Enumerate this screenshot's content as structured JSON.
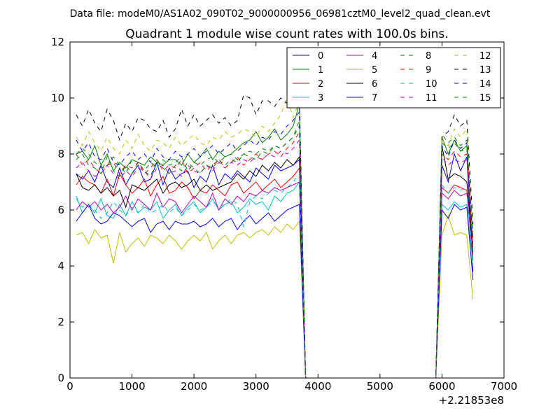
{
  "figure": {
    "suptitle": "Data file: modeM0/AS1A02_090T02_9000000956_06981cztM0_level2_quad_clean.evt",
    "background": "#ffffff"
  },
  "chart_data": {
    "type": "line",
    "title": "Quadrant 1 module wise count rates with 100.0s bins.",
    "xlabel": "",
    "ylabel": "",
    "x_offset_label": "+2.21853e8",
    "xlim": [
      0,
      7000
    ],
    "ylim": [
      0,
      12
    ],
    "xticks": [
      0,
      1000,
      2000,
      3000,
      4000,
      5000,
      6000,
      7000
    ],
    "yticks": [
      0,
      2,
      4,
      6,
      8,
      10,
      12
    ],
    "grid": false,
    "legend": {
      "placement": "top-right",
      "columns": 4
    },
    "x": [
      100,
      200,
      300,
      400,
      500,
      600,
      700,
      800,
      900,
      1000,
      1100,
      1200,
      1300,
      1400,
      1500,
      1600,
      1700,
      1800,
      1900,
      2000,
      2100,
      2200,
      2300,
      2400,
      2500,
      2600,
      2700,
      2800,
      2900,
      3000,
      3100,
      3200,
      3300,
      3400,
      3500,
      3600,
      3700,
      3800,
      3900,
      4000,
      4100,
      4200,
      4300,
      4400,
      4500,
      4600,
      4700,
      4800,
      4900,
      5000,
      5100,
      5200,
      5300,
      5400,
      5500,
      5600,
      5700,
      5800,
      5900,
      6000,
      6100,
      6200,
      6300,
      6400,
      6500
    ],
    "series": [
      {
        "name": "0",
        "color": "#0000ff",
        "dash": "solid",
        "values": [
          7.3,
          7.1,
          7.4,
          7.0,
          7.6,
          7.0,
          6.8,
          7.5,
          6.9,
          7.3,
          7.6,
          7.0,
          7.1,
          7.7,
          6.9,
          7.5,
          7.1,
          7.3,
          7.4,
          6.8,
          7.2,
          7.0,
          7.6,
          6.9,
          7.3,
          7.1,
          7.4,
          7.2,
          7.0,
          7.5,
          7.3,
          7.1,
          7.6,
          7.4,
          7.5,
          7.6,
          7.8,
          0.0,
          0.0,
          0.0,
          0.0,
          0.0,
          0.0,
          0.0,
          0.0,
          0.0,
          0.0,
          0.0,
          0.0,
          0.0,
          0.0,
          0.0,
          0.0,
          0.0,
          0.0,
          0.0,
          0.0,
          0.0,
          0.0,
          7.6,
          7.0,
          8.0,
          7.4,
          7.9,
          3.8
        ]
      },
      {
        "name": "1",
        "color": "#008000",
        "dash": "solid",
        "values": [
          8.0,
          8.1,
          7.8,
          8.3,
          7.6,
          8.0,
          7.4,
          7.7,
          7.5,
          7.8,
          7.7,
          7.6,
          7.9,
          7.7,
          7.6,
          7.8,
          7.8,
          7.6,
          8.0,
          7.7,
          7.9,
          8.2,
          7.8,
          8.1,
          7.9,
          8.0,
          8.2,
          8.4,
          8.5,
          8.8,
          8.4,
          8.6,
          8.9,
          8.5,
          8.7,
          9.0,
          9.8,
          0.0,
          0.0,
          0.0,
          0.0,
          0.0,
          0.0,
          0.0,
          0.0,
          0.0,
          0.0,
          0.0,
          0.0,
          0.0,
          0.0,
          0.0,
          0.0,
          0.0,
          0.0,
          0.0,
          0.0,
          0.0,
          0.0,
          8.6,
          8.0,
          8.5,
          8.1,
          8.3,
          4.2
        ]
      },
      {
        "name": "2",
        "color": "#ff0000",
        "dash": "solid",
        "values": [
          6.9,
          7.2,
          7.0,
          6.9,
          6.6,
          7.1,
          6.5,
          7.3,
          6.9,
          6.6,
          6.8,
          7.1,
          6.5,
          6.9,
          7.2,
          6.6,
          6.7,
          7.0,
          6.8,
          6.4,
          6.7,
          6.6,
          6.9,
          6.7,
          6.5,
          6.9,
          7.0,
          6.6,
          6.8,
          7.0,
          6.7,
          6.9,
          7.1,
          6.8,
          7.0,
          7.2,
          7.5,
          0.0,
          0.0,
          0.0,
          0.0,
          0.0,
          0.0,
          0.0,
          0.0,
          0.0,
          0.0,
          0.0,
          0.0,
          0.0,
          0.0,
          0.0,
          0.0,
          0.0,
          0.0,
          0.0,
          0.0,
          0.0,
          0.0,
          6.8,
          6.6,
          6.9,
          6.8,
          6.7,
          4.2
        ]
      },
      {
        "name": "3",
        "color": "#00bfbf",
        "dash": "solid",
        "values": [
          6.5,
          5.9,
          6.2,
          5.9,
          6.4,
          5.8,
          5.7,
          6.2,
          5.8,
          6.3,
          5.9,
          6.1,
          6.0,
          6.3,
          5.7,
          6.0,
          6.2,
          5.8,
          6.1,
          6.3,
          5.9,
          6.1,
          6.4,
          6.0,
          6.2,
          6.3,
          5.9,
          6.1,
          6.4,
          6.2,
          6.3,
          6.0,
          6.5,
          6.3,
          6.6,
          6.7,
          7.0,
          0.0,
          0.0,
          0.0,
          0.0,
          0.0,
          0.0,
          0.0,
          0.0,
          0.0,
          0.0,
          0.0,
          0.0,
          0.0,
          0.0,
          0.0,
          0.0,
          0.0,
          0.0,
          0.0,
          0.0,
          0.0,
          0.0,
          6.2,
          6.0,
          6.3,
          6.1,
          6.2,
          4.0
        ]
      },
      {
        "name": "4",
        "color": "#bf00bf",
        "dash": "solid",
        "values": [
          6.0,
          6.3,
          6.1,
          6.3,
          6.0,
          6.2,
          5.9,
          6.1,
          6.5,
          6.0,
          6.4,
          6.2,
          6.0,
          6.6,
          6.1,
          6.4,
          6.3,
          5.9,
          6.2,
          6.5,
          6.3,
          6.1,
          6.6,
          6.0,
          6.4,
          6.2,
          6.5,
          6.3,
          6.6,
          6.5,
          6.7,
          6.6,
          6.8,
          6.7,
          6.8,
          6.9,
          7.0,
          0.0,
          0.0,
          0.0,
          0.0,
          0.0,
          0.0,
          0.0,
          0.0,
          0.0,
          0.0,
          0.0,
          0.0,
          0.0,
          0.0,
          0.0,
          0.0,
          0.0,
          0.0,
          0.0,
          0.0,
          0.0,
          0.0,
          6.6,
          6.4,
          6.7,
          6.5,
          6.6,
          4.4
        ]
      },
      {
        "name": "5",
        "color": "#bfbf00",
        "dash": "solid",
        "values": [
          5.1,
          5.2,
          4.8,
          5.3,
          5.0,
          5.1,
          4.1,
          5.2,
          4.5,
          4.8,
          5.0,
          4.7,
          5.1,
          5.0,
          4.8,
          5.1,
          4.9,
          4.6,
          4.9,
          5.1,
          4.9,
          5.2,
          4.6,
          4.9,
          5.1,
          4.8,
          5.1,
          5.2,
          5.0,
          5.2,
          5.3,
          5.1,
          5.4,
          5.2,
          5.5,
          5.3,
          5.6,
          0.0,
          0.0,
          0.0,
          0.0,
          0.0,
          0.0,
          0.0,
          0.0,
          0.0,
          0.0,
          0.0,
          0.0,
          0.0,
          0.0,
          0.0,
          0.0,
          0.0,
          0.0,
          0.0,
          0.0,
          0.0,
          0.0,
          5.1,
          5.8,
          5.1,
          5.2,
          5.1,
          2.8
        ]
      },
      {
        "name": "6",
        "color": "#000000",
        "dash": "solid",
        "values": [
          7.3,
          6.8,
          6.7,
          6.9,
          6.6,
          6.8,
          6.5,
          6.7,
          6.1,
          6.9,
          6.8,
          6.7,
          6.9,
          7.1,
          6.6,
          6.9,
          7.0,
          6.8,
          6.9,
          7.1,
          6.7,
          6.9,
          6.7,
          6.8,
          6.9,
          7.0,
          7.3,
          7.1,
          7.4,
          7.2,
          7.6,
          7.4,
          7.7,
          7.5,
          7.8,
          7.6,
          7.9,
          0.0,
          0.0,
          0.0,
          0.0,
          0.0,
          0.0,
          0.0,
          0.0,
          0.0,
          0.0,
          0.0,
          0.0,
          0.0,
          0.0,
          0.0,
          0.0,
          0.0,
          0.0,
          0.0,
          0.0,
          0.0,
          0.0,
          8.3,
          7.1,
          7.3,
          7.2,
          7.0,
          4.5
        ]
      },
      {
        "name": "7",
        "color": "#0000ff",
        "dash": "solid",
        "values": [
          5.6,
          5.9,
          6.2,
          5.7,
          5.5,
          5.6,
          5.9,
          5.8,
          5.6,
          5.4,
          5.6,
          5.7,
          5.2,
          5.5,
          5.6,
          5.3,
          5.6,
          5.5,
          5.5,
          5.6,
          5.4,
          5.5,
          5.7,
          5.4,
          5.6,
          5.7,
          5.3,
          5.6,
          5.8,
          5.5,
          5.7,
          5.9,
          5.6,
          5.8,
          6.0,
          6.1,
          6.2,
          0.0,
          0.0,
          0.0,
          0.0,
          0.0,
          0.0,
          0.0,
          0.0,
          0.0,
          0.0,
          0.0,
          0.0,
          0.0,
          0.0,
          0.0,
          0.0,
          0.0,
          0.0,
          0.0,
          0.0,
          0.0,
          0.0,
          6.0,
          5.7,
          6.2,
          6.0,
          6.1,
          3.5
        ]
      },
      {
        "name": "8",
        "color": "#008000",
        "dash": "dashed",
        "values": [
          8.0,
          8.2,
          8.0,
          7.7,
          7.5,
          7.6,
          7.9,
          7.6,
          7.3,
          7.8,
          7.7,
          7.4,
          7.7,
          7.5,
          7.8,
          7.6,
          7.7,
          7.9,
          7.4,
          7.7,
          7.6,
          7.8,
          7.9,
          7.7,
          7.9,
          8.0,
          7.8,
          8.0,
          8.1,
          8.0,
          8.2,
          8.1,
          8.3,
          8.2,
          8.4,
          8.6,
          9.2,
          0.0,
          0.0,
          0.0,
          0.0,
          0.0,
          0.0,
          0.0,
          0.0,
          0.0,
          0.0,
          0.0,
          0.0,
          0.0,
          0.0,
          0.0,
          0.0,
          0.0,
          0.0,
          0.0,
          0.0,
          0.0,
          0.0,
          8.4,
          8.2,
          8.4,
          8.1,
          8.2,
          4.8
        ]
      },
      {
        "name": "9",
        "color": "#ff0000",
        "dash": "dashed",
        "values": [
          8.0,
          7.6,
          7.8,
          7.5,
          7.3,
          7.6,
          7.7,
          7.3,
          7.6,
          7.5,
          7.7,
          7.3,
          7.5,
          7.8,
          7.4,
          7.6,
          7.5,
          7.8,
          7.3,
          7.5,
          7.7,
          7.4,
          7.6,
          7.8,
          7.5,
          7.7,
          7.9,
          7.6,
          7.8,
          8.0,
          7.8,
          8.0,
          8.1,
          7.9,
          8.2,
          8.4,
          8.8,
          0.0,
          0.0,
          0.0,
          0.0,
          0.0,
          0.0,
          0.0,
          0.0,
          0.0,
          0.0,
          0.0,
          0.0,
          0.0,
          0.0,
          0.0,
          0.0,
          0.0,
          0.0,
          0.0,
          0.0,
          0.0,
          0.0,
          8.0,
          7.8,
          8.1,
          7.9,
          8.0,
          4.6
        ]
      },
      {
        "name": "10",
        "color": "#00bfbf",
        "dash": "dashed",
        "values": [
          6.4,
          6.1,
          6.2,
          6.0,
          5.7,
          5.9,
          6.3,
          6.0,
          5.8,
          6.1,
          5.9,
          6.2,
          5.9,
          6.0,
          6.2,
          5.9,
          6.1,
          5.8,
          6.0,
          6.2,
          6.0,
          6.1,
          6.3,
          6.1,
          6.2,
          6.4,
          6.2,
          5.4,
          6.3,
          6.5,
          6.4,
          6.6,
          6.7,
          6.6,
          6.8,
          7.0,
          7.3,
          0.0,
          0.0,
          0.0,
          0.0,
          0.0,
          0.0,
          0.0,
          0.0,
          0.0,
          0.0,
          0.0,
          0.0,
          0.0,
          0.0,
          0.0,
          0.0,
          0.0,
          0.0,
          0.0,
          0.0,
          0.0,
          0.0,
          6.9,
          6.6,
          6.8,
          6.7,
          6.8,
          4.2
        ]
      },
      {
        "name": "11",
        "color": "#bf00bf",
        "dash": "dashed",
        "values": [
          7.5,
          7.7,
          7.4,
          7.2,
          7.3,
          7.6,
          7.3,
          7.1,
          7.4,
          7.2,
          7.5,
          7.4,
          7.1,
          7.5,
          7.6,
          7.3,
          7.4,
          7.2,
          7.6,
          7.4,
          7.3,
          7.6,
          7.4,
          7.7,
          7.5,
          7.7,
          7.6,
          7.8,
          7.7,
          7.9,
          7.8,
          8.0,
          7.9,
          8.1,
          8.0,
          8.2,
          8.5,
          0.0,
          0.0,
          0.0,
          0.0,
          0.0,
          0.0,
          0.0,
          0.0,
          0.0,
          0.0,
          0.0,
          0.0,
          0.0,
          0.0,
          0.0,
          0.0,
          0.0,
          0.0,
          0.0,
          0.0,
          0.0,
          0.0,
          7.9,
          7.6,
          7.8,
          7.7,
          7.8,
          4.6
        ]
      },
      {
        "name": "12",
        "color": "#bfbf00",
        "dash": "dashed",
        "values": [
          8.6,
          8.3,
          8.8,
          8.4,
          8.1,
          8.6,
          8.2,
          8.0,
          8.5,
          8.2,
          8.7,
          8.3,
          8.1,
          8.5,
          8.4,
          8.2,
          8.6,
          8.3,
          8.5,
          8.7,
          8.4,
          8.3,
          8.6,
          8.5,
          8.8,
          8.6,
          8.7,
          8.9,
          8.8,
          8.6,
          9.0,
          8.8,
          9.1,
          9.4,
          10.0,
          9.3,
          9.9,
          0.0,
          0.0,
          0.0,
          0.0,
          0.0,
          0.0,
          0.0,
          0.0,
          0.0,
          0.0,
          0.0,
          0.0,
          0.0,
          0.0,
          0.0,
          0.0,
          0.0,
          0.0,
          0.0,
          0.0,
          0.0,
          0.0,
          8.5,
          8.3,
          8.9,
          8.6,
          8.9,
          5.2
        ]
      },
      {
        "name": "13",
        "color": "#000000",
        "dash": "dashed",
        "values": [
          9.4,
          9.0,
          9.6,
          9.1,
          8.8,
          9.6,
          9.2,
          8.5,
          9.1,
          8.8,
          9.3,
          9.2,
          8.9,
          8.8,
          9.2,
          8.6,
          8.9,
          9.6,
          9.0,
          9.4,
          9.0,
          9.2,
          9.4,
          9.1,
          9.3,
          9.0,
          9.2,
          10.1,
          10.0,
          9.4,
          9.9,
          9.9,
          9.7,
          10.0,
          9.8,
          10.2,
          10.0,
          0.0,
          0.0,
          0.0,
          0.0,
          0.0,
          0.0,
          0.0,
          0.0,
          0.0,
          0.0,
          0.0,
          0.0,
          0.0,
          0.0,
          0.0,
          0.0,
          0.0,
          0.0,
          0.0,
          0.0,
          0.0,
          0.0,
          8.6,
          8.8,
          9.4,
          9.0,
          9.2,
          5.5
        ]
      },
      {
        "name": "14",
        "color": "#0000ff",
        "dash": "dashed",
        "values": [
          8.5,
          8.1,
          8.4,
          7.9,
          7.8,
          8.2,
          7.7,
          7.6,
          7.9,
          8.1,
          7.8,
          8.0,
          7.7,
          8.2,
          7.9,
          7.8,
          8.1,
          7.9,
          8.0,
          8.2,
          7.9,
          8.1,
          8.3,
          8.0,
          8.2,
          8.4,
          8.1,
          8.3,
          8.5,
          8.3,
          8.6,
          8.5,
          8.8,
          8.7,
          9.0,
          9.2,
          9.5,
          0.0,
          0.0,
          0.0,
          0.0,
          0.0,
          0.0,
          0.0,
          0.0,
          0.0,
          0.0,
          0.0,
          0.0,
          0.0,
          0.0,
          0.0,
          0.0,
          0.0,
          0.0,
          0.0,
          0.0,
          0.0,
          0.0,
          8.3,
          7.9,
          8.5,
          8.2,
          8.4,
          4.9
        ]
      },
      {
        "name": "15",
        "color": "#008000",
        "dash": "dashed",
        "values": [
          7.8,
          8.0,
          7.6,
          7.5,
          7.3,
          7.9,
          7.4,
          7.2,
          7.6,
          7.3,
          7.7,
          7.4,
          7.2,
          7.8,
          7.5,
          7.3,
          7.6,
          7.4,
          7.7,
          7.5,
          7.3,
          7.6,
          7.5,
          7.8,
          7.6,
          7.8,
          7.7,
          8.0,
          7.9,
          7.8,
          8.1,
          8.0,
          8.3,
          8.2,
          8.4,
          8.6,
          9.0,
          0.0,
          0.0,
          0.0,
          0.0,
          0.0,
          0.0,
          0.0,
          0.0,
          0.0,
          0.0,
          0.0,
          0.0,
          0.0,
          0.0,
          0.0,
          0.0,
          0.0,
          0.0,
          0.0,
          0.0,
          0.0,
          0.0,
          8.7,
          8.4,
          8.6,
          8.3,
          8.5,
          5.0
        ]
      }
    ]
  }
}
